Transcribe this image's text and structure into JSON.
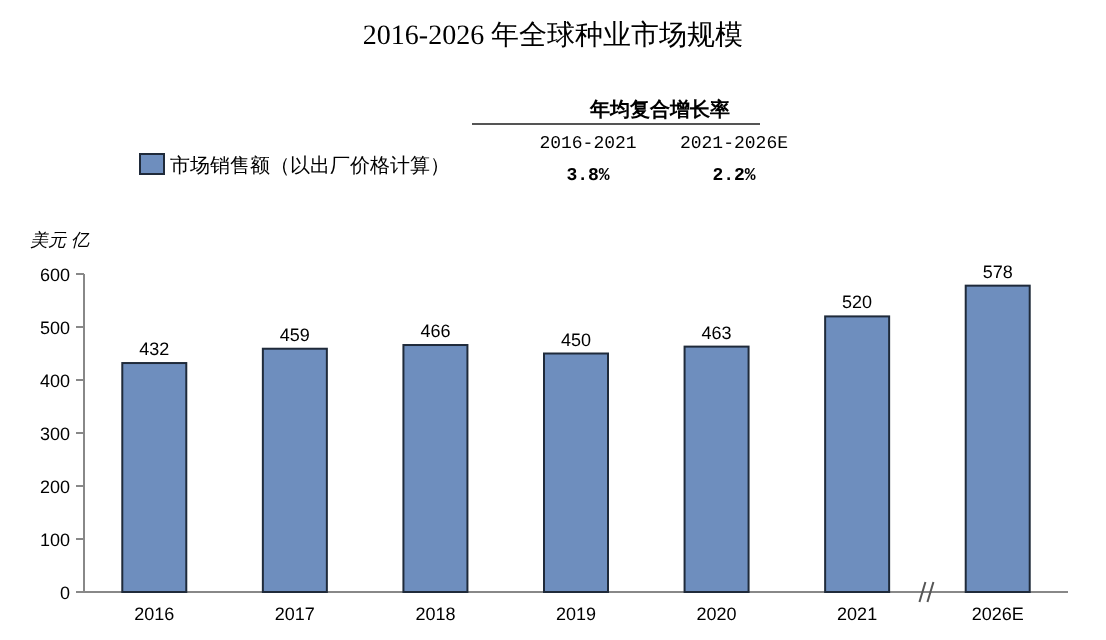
{
  "chart_data": {
    "type": "bar",
    "title": "2016-2026 年全球种业市场规模",
    "ylabel": "美元 亿",
    "categories": [
      "2016",
      "2017",
      "2018",
      "2019",
      "2020",
      "2021",
      "2026E"
    ],
    "series": [
      {
        "name": "市场销售额（以出厂价格计算）",
        "color": "#6e8ebe",
        "values": [
          432,
          459,
          466,
          450,
          463,
          520,
          578
        ]
      }
    ],
    "ylim": [
      0,
      600
    ],
    "yticks": [
      0,
      100,
      200,
      300,
      400,
      500,
      600
    ],
    "data_labels": true,
    "legend": "top left",
    "grid": false,
    "annotations": [
      "年均复合增长率",
      "2016-2021",
      "2021-2026E",
      "3.8%",
      "2.2%"
    ]
  }
}
